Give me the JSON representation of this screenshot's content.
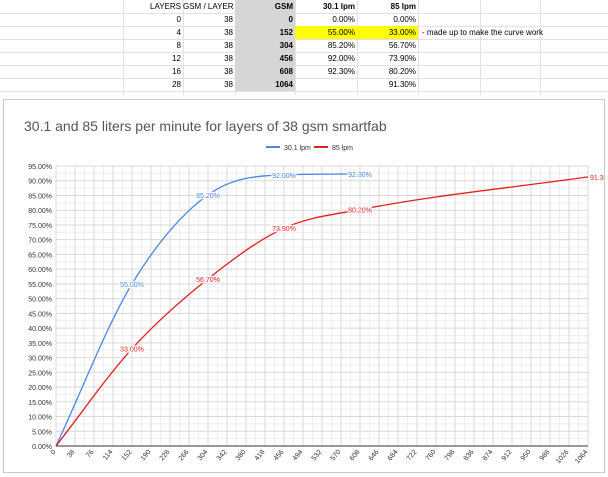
{
  "sheet": {
    "headers": [
      "LAYERS",
      "GSM / LAYER",
      "GSM",
      "30.1 lpm",
      "85 lpm"
    ],
    "rows": [
      {
        "layers": "0",
        "gsm_per_layer": "38",
        "gsm": "0",
        "lpm30": "0.00%",
        "lpm85": "0.00%"
      },
      {
        "layers": "4",
        "gsm_per_layer": "38",
        "gsm": "152",
        "lpm30": "55.00%",
        "lpm85": "33.00%"
      },
      {
        "layers": "8",
        "gsm_per_layer": "38",
        "gsm": "304",
        "lpm30": "85.20%",
        "lpm85": "56.70%"
      },
      {
        "layers": "12",
        "gsm_per_layer": "38",
        "gsm": "456",
        "lpm30": "92.00%",
        "lpm85": "73.90%"
      },
      {
        "layers": "16",
        "gsm_per_layer": "38",
        "gsm": "608",
        "lpm30": "92.30%",
        "lpm85": "80.20%"
      },
      {
        "layers": "28",
        "gsm_per_layer": "38",
        "gsm": "1064",
        "lpm30": "",
        "lpm85": "91.30%"
      }
    ],
    "note": "- made up to make the curve work",
    "highlight_color": "#ffff00"
  },
  "chart_data": {
    "type": "line",
    "title": "30.1 and 85 liters per minute for layers of 38 gsm smartfab",
    "xlabel": "",
    "ylabel": "",
    "xlim": [
      0,
      1064
    ],
    "ylim": [
      0,
      95
    ],
    "x_ticks": [
      "0",
      "38",
      "76",
      "114",
      "152",
      "190",
      "228",
      "266",
      "304",
      "342",
      "380",
      "418",
      "456",
      "494",
      "532",
      "570",
      "608",
      "646",
      "684",
      "722",
      "760",
      "798",
      "836",
      "874",
      "912",
      "950",
      "988",
      "1026",
      "1064"
    ],
    "y_ticks": [
      "0.00%",
      "5.00%",
      "10.00%",
      "15.00%",
      "20.00%",
      "25.00%",
      "30.00%",
      "35.00%",
      "40.00%",
      "45.00%",
      "50.00%",
      "55.00%",
      "60.00%",
      "65.00%",
      "70.00%",
      "75.00%",
      "80.00%",
      "85.00%",
      "90.00%",
      "95.00%"
    ],
    "legend_position": "top",
    "grid": true,
    "series": [
      {
        "name": "30.1 lpm",
        "color": "#4a86e8",
        "x": [
          0,
          152,
          304,
          456,
          608
        ],
        "y": [
          0,
          55.0,
          85.2,
          92.0,
          92.3
        ],
        "labels": [
          "",
          "55.00%",
          "85.20%",
          "92.00%",
          "92.30%"
        ]
      },
      {
        "name": "85 lpm",
        "color": "#e02020",
        "x": [
          0,
          152,
          304,
          456,
          608,
          1064
        ],
        "y": [
          0,
          33.0,
          56.7,
          73.9,
          80.2,
          91.3
        ],
        "labels": [
          "",
          "33.00%",
          "56.70%",
          "73.90%",
          "80.20%",
          "91.30%"
        ]
      }
    ]
  }
}
